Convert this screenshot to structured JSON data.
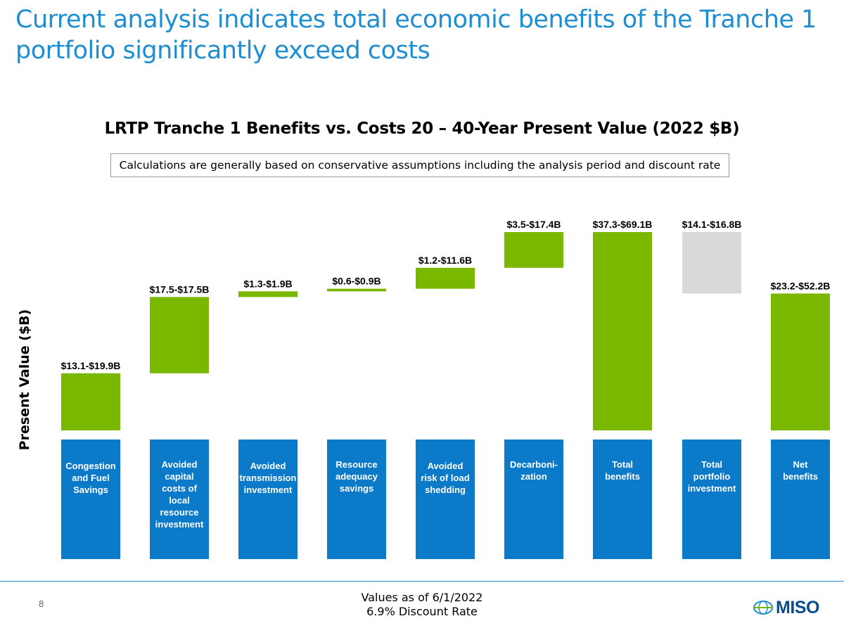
{
  "slide": {
    "title": "Current analysis indicates total economic benefits of the Tranche 1 portfolio significantly exceed costs",
    "page_number": "8",
    "footer_line1": "Values as of 6/1/2022",
    "footer_line2": "6.9% Discount Rate",
    "logo_text": "MISO",
    "logo_icon": "miso-globe-icon",
    "note": "Calculations are generally based on conservative assumptions including the analysis period and discount rate"
  },
  "colors": {
    "benefit": "#7ab800",
    "cost": "#d9d9d9",
    "category_box": "#0b7ac9",
    "title": "#1e8ed3"
  },
  "chart_data": {
    "type": "bar",
    "subtype": "waterfall",
    "title": "LRTP Tranche 1 Benefits vs. Costs 20 – 40-Year Present Value (2022 $B)",
    "ylabel": "Present Value  ($B)",
    "xlabel": "",
    "ylim": [
      0,
      69.1
    ],
    "categories": [
      "Congestion and Fuel Savings",
      "Avoided capital costs of local resource investment",
      "Avoided transmission investment",
      "Resource adequacy savings",
      "Avoided risk of load shedding",
      "Decarboni-zation",
      "Total benefits",
      "Total portfolio investment",
      "Net benefits"
    ],
    "category_lines": [
      [
        "Congestion",
        "and Fuel",
        "Savings"
      ],
      [
        "Avoided",
        "capital",
        "costs of",
        "local",
        "resource",
        "investment"
      ],
      [
        "Avoided",
        "transmission",
        "investment"
      ],
      [
        "Resource",
        "adequacy",
        "savings"
      ],
      [
        "Avoided",
        "risk of load",
        "shedding"
      ],
      [
        "Decarboni-",
        "zation"
      ],
      [
        "Total",
        "benefits"
      ],
      [
        "Total",
        "portfolio",
        "investment"
      ],
      [
        "Net",
        "benefits"
      ]
    ],
    "bars": [
      {
        "label": "$13.1-$19.9B",
        "bottom": 0,
        "top": 13.1,
        "kind": "benefit"
      },
      {
        "label": "$17.5-$17.5B",
        "bottom": 13.1,
        "top": 30.6,
        "kind": "benefit"
      },
      {
        "label": "$1.3-$1.9B",
        "bottom": 30.6,
        "top": 31.9,
        "kind": "benefit"
      },
      {
        "label": "$0.6-$0.9B",
        "bottom": 31.9,
        "top": 32.5,
        "kind": "benefit"
      },
      {
        "label": "$1.2-$11.6B",
        "bottom": 32.5,
        "top": 37.3,
        "kind": "benefit"
      },
      {
        "label": "$3.5-$17.4B",
        "bottom": 37.3,
        "top": 45.5,
        "kind": "benefit"
      },
      {
        "label": "$37.3-$69.1B",
        "bottom": 0,
        "top": 45.5,
        "kind": "benefit"
      },
      {
        "label": "$14.1-$16.8B",
        "bottom": 31.4,
        "top": 45.5,
        "kind": "cost"
      },
      {
        "label": "$23.2-$52.2B",
        "bottom": 0,
        "top": 31.4,
        "kind": "benefit"
      }
    ]
  }
}
